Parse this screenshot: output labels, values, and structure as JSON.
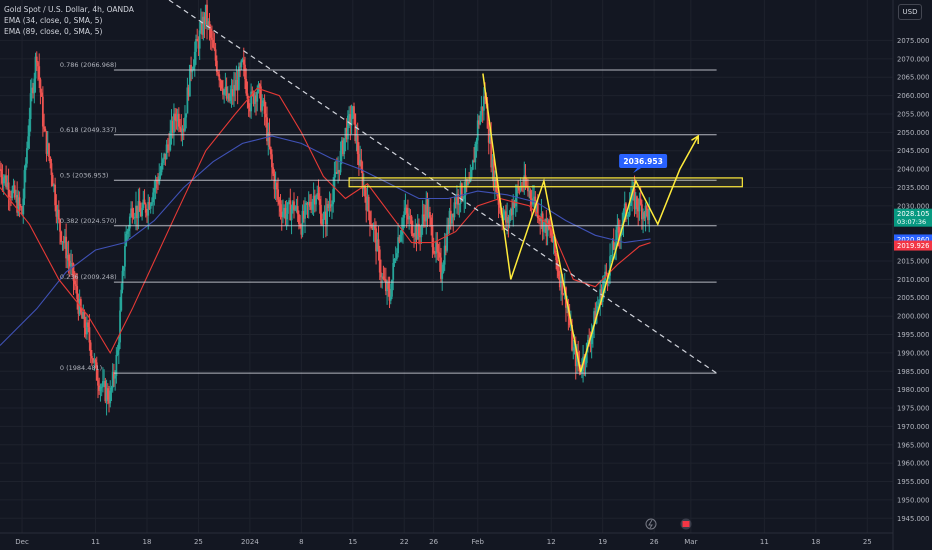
{
  "legend": {
    "title": "Gold Spot / U.S. Dollar, 4h, OANDA",
    "ema1": "EMA (34, close, 0, SMA, 5)",
    "ema2": "EMA (89, close, 0, SMA, 5)"
  },
  "currency_button": "USD",
  "colors": {
    "background": "#131722",
    "up": "#26a69a",
    "down": "#ef5350",
    "ema34": "#e53935",
    "ema89": "#3f51b5",
    "fib": "#d1d4dc",
    "trend": "#d1d4dc",
    "zone": "#ffeb3b",
    "pattern": "#ffeb3b",
    "callout": "#2962ff"
  },
  "chart_data": {
    "type": "candlestick",
    "title": "Gold Spot / U.S. Dollar, 4h, OANDA",
    "ylim": [
      1941,
      2086
    ],
    "y_ticks": [
      1945,
      1950,
      1955,
      1960,
      1965,
      1970,
      1975,
      1980,
      1985,
      1990,
      1995,
      2000,
      2005,
      2010,
      2015,
      2020,
      2025,
      2030,
      2035,
      2040,
      2045,
      2050,
      2055,
      2060,
      2065,
      2070,
      2075
    ],
    "y_tick_labels": [
      "1945.000",
      "1950.000",
      "1955.000",
      "1960.000",
      "1965.000",
      "1970.000",
      "1975.000",
      "1980.000",
      "1985.000",
      "1990.000",
      "1995.000",
      "2000.000",
      "2005.000",
      "2010.000",
      "2015.000",
      "2020.000",
      "2025.000",
      "2030.000",
      "2035.000",
      "2040.000",
      "2045.000",
      "2050.000",
      "2055.000",
      "2060.000",
      "2065.000",
      "2070.000",
      "2075.000"
    ],
    "x_ticks": [
      {
        "label": "Dec",
        "day": 0
      },
      {
        "label": "11",
        "day": 10
      },
      {
        "label": "18",
        "day": 17
      },
      {
        "label": "25",
        "day": 24
      },
      {
        "label": "2024",
        "day": 31
      },
      {
        "label": "8",
        "day": 38
      },
      {
        "label": "15",
        "day": 45
      },
      {
        "label": "22",
        "day": 52
      },
      {
        "label": "26",
        "day": 56
      },
      {
        "label": "Feb",
        "day": 62
      },
      {
        "label": "12",
        "day": 72
      },
      {
        "label": "19",
        "day": 79
      },
      {
        "label": "26",
        "day": 86
      },
      {
        "label": "Mar",
        "day": 91
      },
      {
        "label": "11",
        "day": 101
      },
      {
        "label": "18",
        "day": 108
      },
      {
        "label": "25",
        "day": 115
      }
    ],
    "x_range_days": [
      -3,
      118.5
    ],
    "fib_levels": [
      {
        "ratio": "0.786",
        "price": 2066.968,
        "label": "0.786 (2066.968)"
      },
      {
        "ratio": "0.618",
        "price": 2049.337,
        "label": "0.618 (2049.337)"
      },
      {
        "ratio": "0.5",
        "price": 2036.953,
        "label": "0.5 (2036.953)"
      },
      {
        "ratio": "0.382",
        "price": 2024.57,
        "label": "0.382 (2024.570)"
      },
      {
        "ratio": "0.236",
        "price": 2009.248,
        "label": "0.236 (2009.248)"
      },
      {
        "ratio": "0",
        "price": 1984.481,
        "label": "0 (1984.481)"
      }
    ],
    "fib_x_days": [
      12.5,
      94.5
    ],
    "trendline": [
      {
        "day": 20,
        "price": 2086
      },
      {
        "day": 94.5,
        "price": 1984.5
      }
    ],
    "zone": {
      "day_start": 44.5,
      "day_end": 98,
      "price_low": 2035.2,
      "price_high": 2037.6
    },
    "pattern_path": [
      {
        "day": 62.7,
        "price": 2066
      },
      {
        "day": 66.5,
        "price": 2010
      },
      {
        "day": 71,
        "price": 2036.8
      },
      {
        "day": 76,
        "price": 1984.8
      },
      {
        "day": 83.5,
        "price": 2036.8
      },
      {
        "day": 86.5,
        "price": 2025
      },
      {
        "day": 89.5,
        "price": 2040
      },
      {
        "day": 92,
        "price": 2049
      }
    ],
    "callout": {
      "label": "2036.953",
      "day": 84.5,
      "price": 2042.2
    },
    "price_tags": [
      {
        "label": "2028.105",
        "sub": "03:07:36",
        "price": 2027.6,
        "color": "#089981"
      },
      {
        "label": "2020.860",
        "price": 2020.86,
        "color": "#2962ff"
      },
      {
        "label": "2019.926",
        "price": 2019.2,
        "color": "#f23645"
      }
    ],
    "ema34": [
      [
        -3,
        2035
      ],
      [
        1,
        2025
      ],
      [
        5,
        2010
      ],
      [
        9,
        2000
      ],
      [
        12,
        1990
      ],
      [
        15,
        2002
      ],
      [
        18,
        2015
      ],
      [
        21,
        2028
      ],
      [
        25,
        2045
      ],
      [
        29,
        2055
      ],
      [
        32,
        2062
      ],
      [
        35,
        2060
      ],
      [
        38,
        2050
      ],
      [
        41,
        2038
      ],
      [
        44,
        2032
      ],
      [
        47,
        2036
      ],
      [
        50,
        2028
      ],
      [
        53,
        2020
      ],
      [
        56,
        2020
      ],
      [
        59,
        2023
      ],
      [
        62,
        2030
      ],
      [
        65,
        2032
      ],
      [
        69,
        2030
      ],
      [
        72,
        2024
      ],
      [
        75,
        2010
      ],
      [
        78,
        2008
      ],
      [
        81,
        2014
      ],
      [
        84,
        2019
      ],
      [
        85.5,
        2020
      ]
    ],
    "ema89": [
      [
        -3,
        1992
      ],
      [
        2,
        2002
      ],
      [
        6,
        2012
      ],
      [
        10,
        2018
      ],
      [
        14,
        2020
      ],
      [
        18,
        2026
      ],
      [
        22,
        2035
      ],
      [
        26,
        2042
      ],
      [
        30,
        2047
      ],
      [
        34,
        2049
      ],
      [
        38,
        2047
      ],
      [
        42,
        2043
      ],
      [
        46,
        2040
      ],
      [
        50,
        2036
      ],
      [
        54,
        2032
      ],
      [
        58,
        2032
      ],
      [
        62,
        2034
      ],
      [
        66,
        2033
      ],
      [
        70,
        2031
      ],
      [
        74,
        2026
      ],
      [
        78,
        2022
      ],
      [
        82,
        2020
      ],
      [
        85.5,
        2021
      ]
    ],
    "price_path": [
      [
        -3,
        2040
      ],
      [
        0,
        2028
      ],
      [
        1,
        2055
      ],
      [
        2,
        2072
      ],
      [
        3,
        2050
      ],
      [
        4,
        2040
      ],
      [
        5,
        2025
      ],
      [
        6,
        2018
      ],
      [
        7,
        2010
      ],
      [
        8,
        2000
      ],
      [
        9,
        1995
      ],
      [
        10,
        1985
      ],
      [
        11,
        1980
      ],
      [
        12,
        1978
      ],
      [
        13,
        1990
      ],
      [
        14,
        2020
      ],
      [
        15,
        2030
      ],
      [
        16,
        2028
      ],
      [
        17,
        2030
      ],
      [
        18,
        2035
      ],
      [
        19,
        2040
      ],
      [
        20,
        2048
      ],
      [
        21,
        2055
      ],
      [
        22,
        2052
      ],
      [
        23,
        2068
      ],
      [
        24,
        2075
      ],
      [
        25,
        2082
      ],
      [
        26,
        2072
      ],
      [
        27,
        2065
      ],
      [
        28,
        2058
      ],
      [
        29,
        2062
      ],
      [
        30,
        2068
      ],
      [
        31,
        2058
      ],
      [
        32,
        2062
      ],
      [
        33,
        2055
      ],
      [
        34,
        2040
      ],
      [
        35,
        2030
      ],
      [
        36,
        2028
      ],
      [
        37,
        2030
      ],
      [
        38,
        2025
      ],
      [
        39,
        2030
      ],
      [
        40,
        2034
      ],
      [
        41,
        2025
      ],
      [
        42,
        2032
      ],
      [
        43,
        2040
      ],
      [
        44,
        2050
      ],
      [
        45,
        2055
      ],
      [
        46,
        2040
      ],
      [
        47,
        2030
      ],
      [
        48,
        2022
      ],
      [
        49,
        2010
      ],
      [
        50,
        2005
      ],
      [
        51,
        2020
      ],
      [
        52,
        2028
      ],
      [
        53,
        2025
      ],
      [
        54,
        2022
      ],
      [
        55,
        2030
      ],
      [
        56,
        2020
      ],
      [
        57,
        2012
      ],
      [
        58,
        2025
      ],
      [
        59,
        2032
      ],
      [
        60,
        2034
      ],
      [
        61,
        2035
      ],
      [
        62,
        2052
      ],
      [
        63,
        2060
      ],
      [
        64,
        2040
      ],
      [
        65,
        2030
      ],
      [
        66,
        2025
      ],
      [
        67,
        2032
      ],
      [
        68,
        2036
      ],
      [
        69,
        2034
      ],
      [
        70,
        2030
      ],
      [
        71,
        2025
      ],
      [
        72,
        2022
      ],
      [
        73,
        2012
      ],
      [
        74,
        2005
      ],
      [
        75,
        1990
      ],
      [
        76,
        1986
      ],
      [
        77,
        1992
      ],
      [
        78,
        2000
      ],
      [
        79,
        2008
      ],
      [
        80,
        2015
      ],
      [
        81,
        2022
      ],
      [
        82,
        2028
      ],
      [
        83,
        2032
      ],
      [
        84,
        2030
      ],
      [
        85,
        2028
      ],
      [
        85.5,
        2028.1
      ]
    ]
  }
}
